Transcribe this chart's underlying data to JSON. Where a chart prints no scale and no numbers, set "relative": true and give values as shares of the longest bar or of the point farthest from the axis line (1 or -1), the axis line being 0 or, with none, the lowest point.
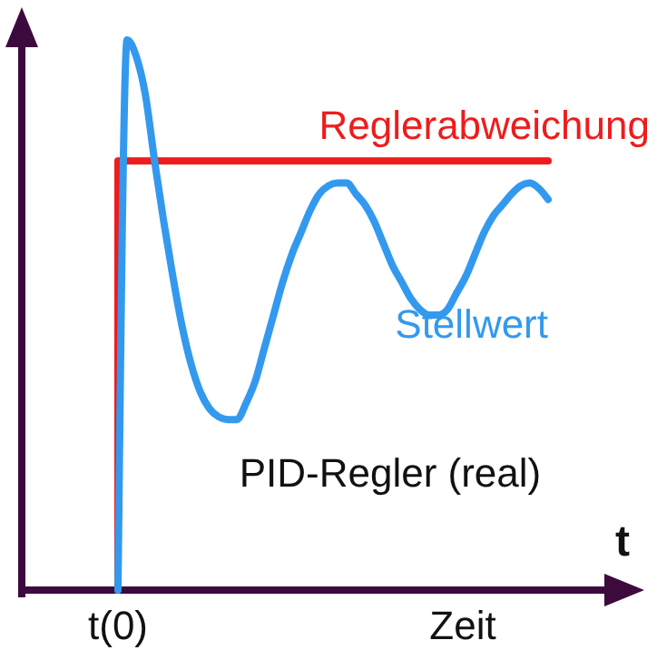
{
  "chart_data": {
    "type": "line",
    "title": "PID-Regler (real)",
    "xlabel": "Zeit",
    "annotations": [
      "t(0)",
      "t"
    ],
    "relative": true,
    "categories": [
      null,
      null,
      null,
      null,
      null,
      null,
      null,
      null,
      null,
      null,
      null,
      null,
      null,
      null,
      null,
      null,
      null,
      null,
      null,
      null,
      null,
      null,
      null,
      null,
      null,
      null,
      null,
      null,
      null,
      null,
      null,
      null,
      null,
      null,
      null,
      null,
      null,
      null,
      null,
      null,
      null,
      null,
      null,
      null,
      null,
      null,
      null,
      null
    ],
    "series": [
      {
        "name": "Reglerabweichung",
        "type": "step",
        "color": "#ee1c1c",
        "values": [
          0,
          0.78,
          0.78,
          0.78,
          0.78,
          0.78,
          0.78,
          0.78,
          0.78,
          0.78,
          0.78,
          0.78,
          0.78,
          0.78,
          0.78,
          0.78,
          0.78,
          0.78,
          0.78,
          0.78,
          0.78,
          0.78,
          0.78,
          0.78,
          0.78,
          0.78,
          0.78,
          0.78,
          0.78,
          0.78,
          0.78,
          0.78,
          0.78,
          0.78,
          0.78,
          0.78,
          0.78,
          0.78,
          0.78,
          0.78,
          0.78,
          0.78,
          0.78,
          0.78,
          0.78,
          0.78,
          0.78,
          0.78
        ]
      },
      {
        "name": "Stellwert",
        "color": "#3399ee",
        "values": [
          0,
          1,
          0.97,
          0.9,
          0.78,
          0.67,
          0.57,
          0.48,
          0.41,
          0.36,
          0.33,
          0.315,
          0.31,
          0.31,
          0.34,
          0.38,
          0.44,
          0.5,
          0.56,
          0.61,
          0.65,
          0.69,
          0.72,
          0.735,
          0.74,
          0.74,
          0.72,
          0.7,
          0.67,
          0.63,
          0.59,
          0.56,
          0.53,
          0.51,
          0.5,
          0.5,
          0.51,
          0.54,
          0.57,
          0.61,
          0.65,
          0.68,
          0.7,
          0.72,
          0.735,
          0.74,
          0.73,
          0.71
        ]
      }
    ]
  }
}
